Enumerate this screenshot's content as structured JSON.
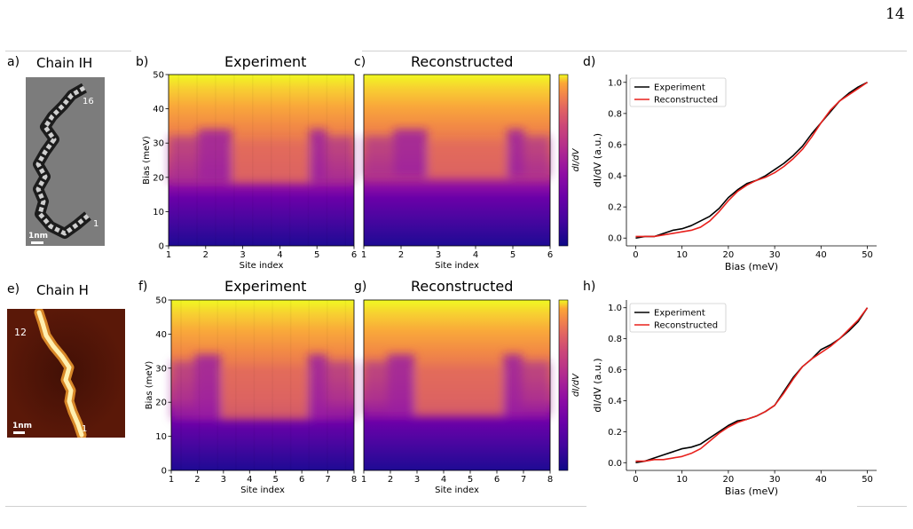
{
  "page": {
    "number": "14"
  },
  "rowIH": {
    "label_a": "a)",
    "title_a": "Chain IH",
    "scale": "1nm",
    "site_top": "16",
    "site_bottom": "1",
    "label_b": "b)",
    "title_b": "Experiment",
    "label_c": "c)",
    "title_c": "Reconstructed",
    "label_d": "d)"
  },
  "rowH": {
    "label_e": "e)",
    "title_e": "Chain H",
    "scale": "1nm",
    "site_top": "12",
    "site_bottom": "1",
    "label_f": "f)",
    "title_f": "Experiment",
    "label_g": "g)",
    "title_g": "Reconstructed",
    "label_h": "h)"
  },
  "colors": {
    "experiment": "#000000",
    "reconstructed": "#e8201c"
  },
  "chart_data": [
    {
      "id": "b",
      "type": "heatmap",
      "title": "Experiment",
      "xlabel": "Site index",
      "ylabel": "Bias (meV)",
      "xticks": [
        1,
        2,
        3,
        4,
        5,
        6
      ],
      "yticks": [
        0,
        10,
        20,
        30,
        40,
        50
      ],
      "xlim": [
        1,
        6
      ],
      "ylim": [
        0,
        50
      ]
    },
    {
      "id": "c",
      "type": "heatmap",
      "title": "Reconstructed",
      "xlabel": "Site index",
      "ylabel": "",
      "xticks": [
        1,
        2,
        3,
        4,
        5,
        6
      ],
      "xlim": [
        1,
        6
      ],
      "ylim": [
        0,
        50
      ],
      "colorbar_label": "dI/dV"
    },
    {
      "id": "d",
      "type": "line",
      "xlabel": "Bias (meV)",
      "ylabel": "dI/dV (a.u.)",
      "xlim": [
        -2,
        52
      ],
      "ylim": [
        -0.05,
        1.05
      ],
      "xticks": [
        0,
        10,
        20,
        30,
        40,
        50
      ],
      "yticks": [
        0.0,
        0.2,
        0.4,
        0.6,
        0.8,
        1.0
      ],
      "legend": "top-left",
      "series": [
        {
          "name": "Experiment",
          "x": [
            0,
            2,
            4,
            6,
            8,
            10,
            12,
            14,
            16,
            18,
            20,
            22,
            24,
            26,
            28,
            30,
            32,
            34,
            36,
            38,
            40,
            42,
            44,
            46,
            48,
            50
          ],
          "values": [
            0.0,
            0.01,
            0.01,
            0.03,
            0.05,
            0.06,
            0.08,
            0.11,
            0.14,
            0.19,
            0.26,
            0.31,
            0.35,
            0.37,
            0.4,
            0.44,
            0.48,
            0.53,
            0.59,
            0.67,
            0.74,
            0.81,
            0.88,
            0.93,
            0.97,
            1.0
          ]
        },
        {
          "name": "Reconstructed",
          "x": [
            0,
            2,
            4,
            6,
            8,
            10,
            12,
            14,
            16,
            18,
            20,
            22,
            24,
            26,
            28,
            30,
            32,
            34,
            36,
            38,
            40,
            42,
            44,
            46,
            48,
            50
          ],
          "values": [
            0.01,
            0.01,
            0.01,
            0.02,
            0.03,
            0.04,
            0.05,
            0.07,
            0.11,
            0.17,
            0.24,
            0.3,
            0.34,
            0.37,
            0.39,
            0.42,
            0.46,
            0.51,
            0.57,
            0.65,
            0.74,
            0.82,
            0.88,
            0.92,
            0.96,
            1.0
          ]
        }
      ]
    },
    {
      "id": "f",
      "type": "heatmap",
      "title": "Experiment",
      "xlabel": "Site index",
      "ylabel": "Bias (meV)",
      "xticks": [
        1,
        2,
        3,
        4,
        5,
        6,
        7,
        8
      ],
      "yticks": [
        0,
        10,
        20,
        30,
        40,
        50
      ],
      "xlim": [
        1,
        8
      ],
      "ylim": [
        0,
        50
      ]
    },
    {
      "id": "g",
      "type": "heatmap",
      "title": "Reconstructed",
      "xlabel": "Site index",
      "ylabel": "",
      "xticks": [
        1,
        2,
        3,
        4,
        5,
        6,
        7,
        8
      ],
      "xlim": [
        1,
        8
      ],
      "ylim": [
        0,
        50
      ],
      "colorbar_label": "dI/dV"
    },
    {
      "id": "h",
      "type": "line",
      "xlabel": "Bias (meV)",
      "ylabel": "dI/dV (a.u.)",
      "xlim": [
        -2,
        52
      ],
      "ylim": [
        -0.05,
        1.05
      ],
      "xticks": [
        0,
        10,
        20,
        30,
        40,
        50
      ],
      "yticks": [
        0.0,
        0.2,
        0.4,
        0.6,
        0.8,
        1.0
      ],
      "legend": "top-left",
      "series": [
        {
          "name": "Experiment",
          "x": [
            0,
            2,
            4,
            6,
            8,
            10,
            12,
            14,
            16,
            18,
            20,
            22,
            24,
            26,
            28,
            30,
            32,
            34,
            36,
            38,
            40,
            42,
            44,
            46,
            48,
            50
          ],
          "values": [
            0.0,
            0.01,
            0.03,
            0.05,
            0.07,
            0.09,
            0.1,
            0.12,
            0.16,
            0.2,
            0.24,
            0.27,
            0.28,
            0.3,
            0.33,
            0.37,
            0.46,
            0.55,
            0.62,
            0.67,
            0.73,
            0.76,
            0.8,
            0.85,
            0.91,
            1.0
          ]
        },
        {
          "name": "Reconstructed",
          "x": [
            0,
            2,
            4,
            6,
            8,
            10,
            12,
            14,
            16,
            18,
            20,
            22,
            24,
            26,
            28,
            30,
            32,
            34,
            36,
            38,
            40,
            42,
            44,
            46,
            48,
            50
          ],
          "values": [
            0.01,
            0.01,
            0.02,
            0.02,
            0.03,
            0.04,
            0.06,
            0.09,
            0.14,
            0.19,
            0.23,
            0.26,
            0.28,
            0.3,
            0.33,
            0.37,
            0.45,
            0.54,
            0.62,
            0.67,
            0.71,
            0.75,
            0.8,
            0.86,
            0.92,
            1.0
          ]
        }
      ]
    }
  ]
}
